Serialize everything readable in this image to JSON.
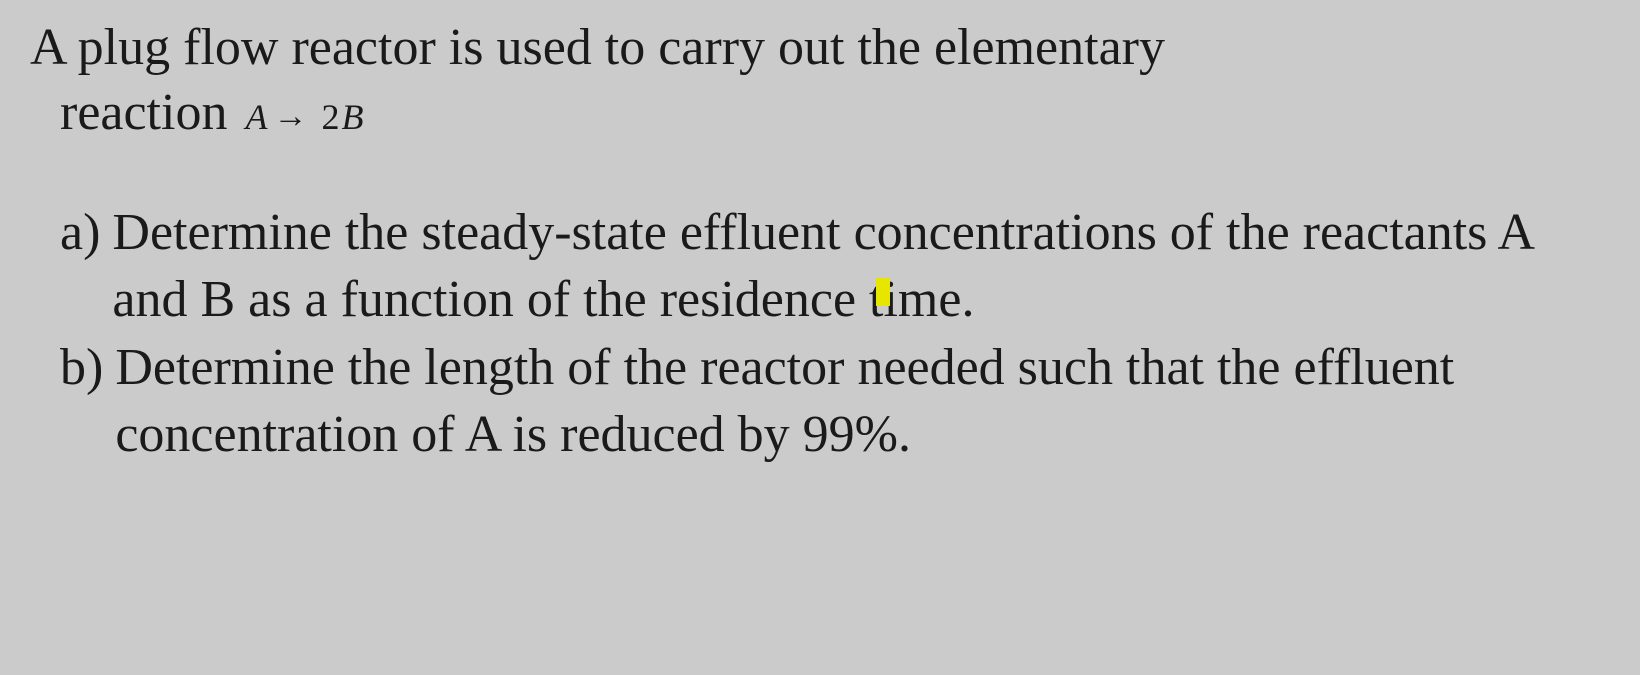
{
  "page": {
    "background_color": "#cbcbcb",
    "text_color": "#1a1a1a",
    "font_family": "Times New Roman",
    "base_fontsize_pt": 39,
    "equation_fontsize_pt": 27,
    "highlight_color": "#e6e600"
  },
  "intro": {
    "line1": "A plug flow reactor is used to carry out the elementary",
    "line2_prefix": "reaction",
    "reaction": {
      "reactant": "A",
      "arrow": "→",
      "product_coef": "2",
      "product": "B"
    }
  },
  "questions": [
    {
      "label": "a)",
      "text": "Determine the steady-state effluent concentrations of the reactants A and B as a function of the residence time."
    },
    {
      "label": "b)",
      "text": "Determine the length of the reactor needed such that the effluent concentration of A is reduced by 99%."
    }
  ]
}
